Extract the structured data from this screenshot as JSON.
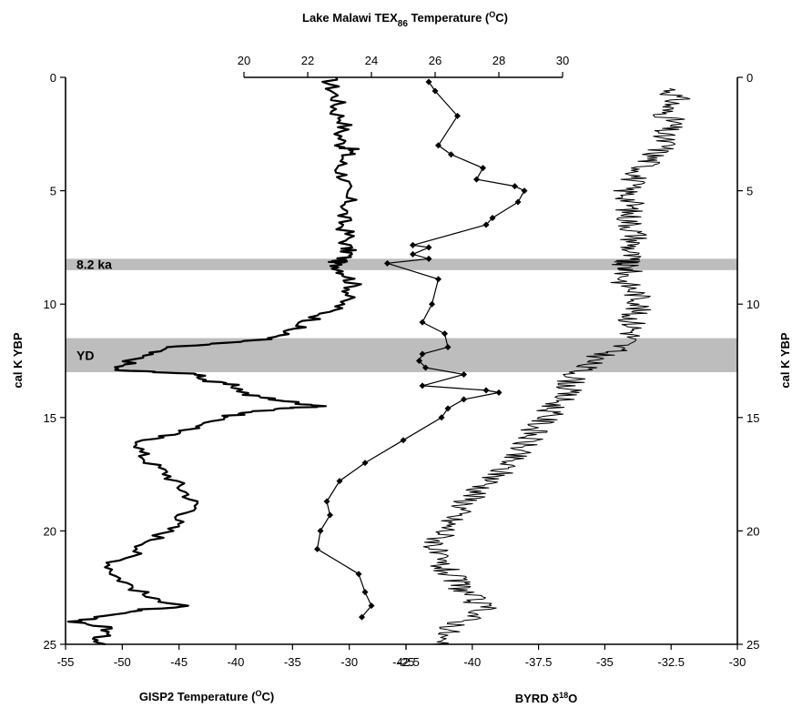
{
  "chart_data": {
    "type": "line",
    "y_axis": {
      "label": "cal K YBP",
      "ticks": [
        "0",
        "5",
        "10",
        "15",
        "20",
        "25"
      ],
      "range": [
        0,
        25
      ],
      "inverted": true
    },
    "bands": [
      {
        "label": "8.2 ka",
        "range": [
          8.0,
          8.5
        ]
      },
      {
        "label": "YD",
        "range": [
          11.5,
          13.0
        ]
      }
    ],
    "axes": {
      "gisp2_x": {
        "label": "GISP2 Temperature (°C)",
        "label_main": "GISP2 Temperature (",
        "label_sup": "O",
        "label_end": "C)",
        "ticks": [
          "-55",
          "-50",
          "-45",
          "-40",
          "-35",
          "-30",
          "-25"
        ],
        "range": [
          -55,
          -25
        ]
      },
      "byrd_x": {
        "label": "BYRD δ18O",
        "label_main": "BYRD δ",
        "label_sup": "18",
        "label_end": "O",
        "ticks": [
          "-42.5",
          "-40",
          "-37.5",
          "-35",
          "-32.5",
          "-30"
        ],
        "range": [
          -42.5,
          -30
        ]
      },
      "tex_x": {
        "label": "Lake Malawi TEX86 Temperature (°C)",
        "label_main": "Lake Malawi TEX",
        "label_sub": "86",
        "label_mid": " Temperature (",
        "label_sup": "O",
        "label_end": "C)",
        "ticks": [
          "20",
          "22",
          "24",
          "26",
          "28",
          "30"
        ],
        "range": [
          20,
          30
        ]
      }
    },
    "series": [
      {
        "name": "GISP2",
        "x_axis": "gisp2_x",
        "points": [
          [
            -31.8,
            0
          ],
          [
            -31.5,
            0.5
          ],
          [
            -31.0,
            1
          ],
          [
            -31.2,
            1.5
          ],
          [
            -30.3,
            2
          ],
          [
            -30.8,
            2.5
          ],
          [
            -30.6,
            3
          ],
          [
            -29.8,
            3.2
          ],
          [
            -30.4,
            3.5
          ],
          [
            -30.9,
            4
          ],
          [
            -30.3,
            4.5
          ],
          [
            -30.6,
            5
          ],
          [
            -30.0,
            5.5
          ],
          [
            -30.5,
            6
          ],
          [
            -30.6,
            6.5
          ],
          [
            -30.1,
            7
          ],
          [
            -30.3,
            7.5
          ],
          [
            -30.0,
            7.8
          ],
          [
            -30.9,
            8.1
          ],
          [
            -31.3,
            8.2
          ],
          [
            -30.6,
            8.5
          ],
          [
            -30.0,
            8.8
          ],
          [
            -29.6,
            9.2
          ],
          [
            -30.1,
            9.6
          ],
          [
            -30.9,
            10.1
          ],
          [
            -32.5,
            10.5
          ],
          [
            -34.0,
            10.9
          ],
          [
            -35.5,
            11.2
          ],
          [
            -36.5,
            11.5
          ],
          [
            -41.0,
            11.7
          ],
          [
            -46.0,
            11.9
          ],
          [
            -48.0,
            12.2
          ],
          [
            -49.5,
            12.6
          ],
          [
            -51.0,
            12.9
          ],
          [
            -46.5,
            13.0
          ],
          [
            -43.0,
            13.1
          ],
          [
            -42.5,
            13.4
          ],
          [
            -40.0,
            13.6
          ],
          [
            -39.0,
            14.0
          ],
          [
            -36.5,
            14.2
          ],
          [
            -34.0,
            14.4
          ],
          [
            -32.0,
            14.5
          ],
          [
            -36.0,
            14.6
          ],
          [
            -39.0,
            14.8
          ],
          [
            -41.5,
            15.0
          ],
          [
            -43.0,
            15.4
          ],
          [
            -45.5,
            15.7
          ],
          [
            -48.0,
            16.0
          ],
          [
            -48.5,
            16.5
          ],
          [
            -47.5,
            17.0
          ],
          [
            -46.0,
            17.5
          ],
          [
            -45.0,
            18.0
          ],
          [
            -44.0,
            18.5
          ],
          [
            -43.5,
            19.0
          ],
          [
            -45.0,
            19.5
          ],
          [
            -46.0,
            20.0
          ],
          [
            -47.5,
            20.5
          ],
          [
            -49.0,
            21.0
          ],
          [
            -51.0,
            21.5
          ],
          [
            -50.5,
            22.0
          ],
          [
            -49.0,
            22.5
          ],
          [
            -47.5,
            23.0
          ],
          [
            -44.0,
            23.3
          ],
          [
            -49.0,
            23.5
          ],
          [
            -52.5,
            23.8
          ],
          [
            -54.0,
            24.0
          ],
          [
            -51.0,
            24.3
          ],
          [
            -52.0,
            24.7
          ],
          [
            -51.5,
            25.0
          ]
        ]
      },
      {
        "name": "BYRD",
        "x_axis": "byrd_x",
        "points": [
          [
            -32.5,
            0.5
          ],
          [
            -32.3,
            1
          ],
          [
            -32.8,
            1.5
          ],
          [
            -32.4,
            2
          ],
          [
            -32.9,
            2.5
          ],
          [
            -32.7,
            3
          ],
          [
            -33.2,
            3.5
          ],
          [
            -33.5,
            4
          ],
          [
            -33.9,
            4.5
          ],
          [
            -34.2,
            5
          ],
          [
            -34.0,
            5.5
          ],
          [
            -34.1,
            6
          ],
          [
            -34.0,
            6.5
          ],
          [
            -33.8,
            7
          ],
          [
            -34.0,
            7.5
          ],
          [
            -34.1,
            8
          ],
          [
            -34.3,
            8.2
          ],
          [
            -34.1,
            8.5
          ],
          [
            -34.3,
            9
          ],
          [
            -33.8,
            9.5
          ],
          [
            -33.6,
            10
          ],
          [
            -34.0,
            10.5
          ],
          [
            -33.9,
            11
          ],
          [
            -34.0,
            11.5
          ],
          [
            -34.6,
            12
          ],
          [
            -35.5,
            12.5
          ],
          [
            -36.0,
            13
          ],
          [
            -36.3,
            13.5
          ],
          [
            -36.5,
            14
          ],
          [
            -36.9,
            14.5
          ],
          [
            -37.2,
            15
          ],
          [
            -37.6,
            15.5
          ],
          [
            -37.9,
            16
          ],
          [
            -38.3,
            16.5
          ],
          [
            -38.7,
            17
          ],
          [
            -39.0,
            17.5
          ],
          [
            -39.5,
            18
          ],
          [
            -40.0,
            18.5
          ],
          [
            -40.4,
            19
          ],
          [
            -40.8,
            19.5
          ],
          [
            -41.0,
            20
          ],
          [
            -41.3,
            20.5
          ],
          [
            -41.5,
            21
          ],
          [
            -41.2,
            21.5
          ],
          [
            -40.8,
            22
          ],
          [
            -40.4,
            22.5
          ],
          [
            -40.0,
            23
          ],
          [
            -39.5,
            23.5
          ],
          [
            -40.4,
            24
          ],
          [
            -41.0,
            24.5
          ],
          [
            -41.5,
            25
          ]
        ]
      },
      {
        "name": "Lake Malawi TEX86",
        "x_axis": "tex_x",
        "points": [
          [
            25.8,
            0.2
          ],
          [
            26.0,
            0.6
          ],
          [
            26.7,
            1.7
          ],
          [
            26.1,
            3.0
          ],
          [
            26.5,
            3.4
          ],
          [
            27.5,
            4.0
          ],
          [
            27.3,
            4.5
          ],
          [
            28.5,
            4.8
          ],
          [
            28.8,
            5.0
          ],
          [
            28.6,
            5.5
          ],
          [
            27.8,
            6.2
          ],
          [
            27.6,
            6.5
          ],
          [
            25.3,
            7.4
          ],
          [
            25.8,
            7.5
          ],
          [
            25.3,
            7.8
          ],
          [
            25.8,
            8.0
          ],
          [
            24.5,
            8.2
          ],
          [
            26.1,
            8.9
          ],
          [
            25.9,
            10.0
          ],
          [
            25.6,
            10.8
          ],
          [
            26.3,
            11.3
          ],
          [
            26.4,
            11.9
          ],
          [
            25.6,
            12.2
          ],
          [
            25.5,
            12.5
          ],
          [
            25.7,
            12.8
          ],
          [
            26.9,
            13.1
          ],
          [
            25.6,
            13.6
          ],
          [
            27.6,
            13.8
          ],
          [
            28.0,
            13.9
          ],
          [
            26.9,
            14.2
          ],
          [
            26.4,
            14.6
          ],
          [
            26.2,
            15.0
          ],
          [
            25.0,
            16.0
          ],
          [
            23.8,
            17.0
          ],
          [
            23.0,
            17.8
          ],
          [
            22.6,
            18.7
          ],
          [
            22.7,
            19.3
          ],
          [
            22.4,
            20.0
          ],
          [
            22.3,
            20.8
          ],
          [
            23.6,
            21.9
          ],
          [
            23.8,
            22.7
          ],
          [
            24.0,
            23.3
          ],
          [
            23.7,
            23.8
          ]
        ]
      }
    ]
  }
}
